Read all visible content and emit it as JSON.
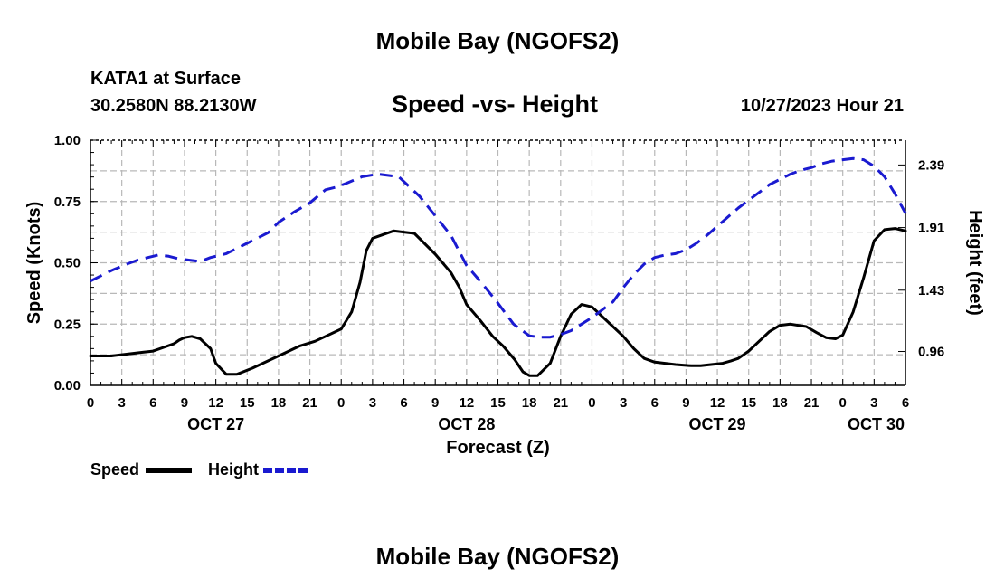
{
  "header": {
    "title": "Mobile Bay (NGOFS2)",
    "station": "KATA1 at Surface",
    "coords": "30.2580N  88.2130W",
    "subtitle": "Speed -vs- Height",
    "datetime": "10/27/2023 Hour 21"
  },
  "footer": {
    "title": "Mobile Bay (NGOFS2)"
  },
  "chart_data": {
    "type": "line",
    "title": "Speed -vs- Height",
    "xlabel": "Forecast (Z)",
    "ylabel": "Speed (Knots)",
    "y2label": "Height (feet)",
    "x_unit": "hours since OCT 27 00Z",
    "xlim": [
      0,
      78
    ],
    "ylim": [
      0,
      1
    ],
    "y2lim": [
      0.7,
      2.58
    ],
    "x_ticks": [
      0,
      3,
      6,
      9,
      12,
      15,
      18,
      21,
      24,
      27,
      30,
      33,
      36,
      39,
      42,
      45,
      48,
      51,
      54,
      57,
      60,
      63,
      66,
      69,
      72,
      75,
      78
    ],
    "x_tick_labels": [
      "0",
      "3",
      "6",
      "9",
      "12",
      "15",
      "18",
      "21",
      "0",
      "3",
      "6",
      "9",
      "12",
      "15",
      "18",
      "21",
      "0",
      "3",
      "6",
      "9",
      "12",
      "15",
      "18",
      "21",
      "0",
      "3",
      "6"
    ],
    "date_labels": [
      {
        "x": 12,
        "label": "OCT 27"
      },
      {
        "x": 36,
        "label": "OCT 28"
      },
      {
        "x": 60,
        "label": "OCT 29"
      },
      {
        "x": 78,
        "label": "OCT 30"
      }
    ],
    "y_ticks": [
      0,
      0.25,
      0.5,
      0.75,
      1.0
    ],
    "y_tick_labels": [
      "0.00",
      "0.25",
      "0.50",
      "0.75",
      "1.00"
    ],
    "y2_ticks": [
      0.96,
      1.43,
      1.91,
      2.39
    ],
    "y2_tick_labels": [
      "0.96",
      "1.43",
      "1.91",
      "2.39"
    ],
    "grid": true,
    "legend": [
      {
        "name": "Speed",
        "color": "#000000",
        "style": "solid"
      },
      {
        "name": "Height",
        "color": "#1a1ad0",
        "style": "dashed"
      }
    ],
    "series": [
      {
        "name": "Speed",
        "axis": "left",
        "color": "#000000",
        "x": [
          0,
          2,
          4,
          5,
          6,
          7,
          8,
          8.5,
          9,
          9.7,
          10.5,
          11.5,
          12,
          13,
          14,
          15.5,
          18,
          20,
          21.5,
          22.5,
          23.5,
          24,
          25,
          25.8,
          26.4,
          27,
          29,
          31,
          33,
          34.5,
          35.3,
          36,
          37.3,
          38.5,
          39.5,
          40.6,
          41.4,
          42,
          42.8,
          44,
          45,
          46,
          47,
          48,
          49,
          50,
          51,
          52,
          53,
          54,
          56,
          57.5,
          58.4,
          59.4,
          60.5,
          61.3,
          62,
          63,
          64,
          65,
          66,
          67,
          68.5,
          69.5,
          70.4,
          71.3,
          72,
          73,
          74,
          75,
          76,
          77,
          78
        ],
        "values": [
          0.12,
          0.12,
          0.13,
          0.135,
          0.14,
          0.155,
          0.17,
          0.185,
          0.195,
          0.2,
          0.19,
          0.15,
          0.09,
          0.045,
          0.045,
          0.07,
          0.12,
          0.16,
          0.18,
          0.2,
          0.22,
          0.23,
          0.3,
          0.42,
          0.55,
          0.6,
          0.63,
          0.62,
          0.535,
          0.46,
          0.4,
          0.33,
          0.265,
          0.2,
          0.16,
          0.105,
          0.055,
          0.04,
          0.04,
          0.09,
          0.2,
          0.29,
          0.33,
          0.32,
          0.28,
          0.24,
          0.2,
          0.15,
          0.11,
          0.095,
          0.085,
          0.08,
          0.08,
          0.085,
          0.09,
          0.1,
          0.11,
          0.14,
          0.18,
          0.22,
          0.245,
          0.25,
          0.24,
          0.215,
          0.195,
          0.19,
          0.205,
          0.3,
          0.44,
          0.59,
          0.635,
          0.64,
          0.63
        ]
      },
      {
        "name": "Height",
        "axis": "right",
        "color": "#1a1ad0",
        "x": [
          0,
          2,
          3.5,
          4.5,
          5.5,
          6.5,
          7.5,
          8.5,
          9.5,
          10.5,
          11.5,
          13,
          15,
          17,
          18,
          19.5,
          21,
          22.5,
          23.5,
          24.5,
          26,
          27.5,
          29.5,
          31.5,
          33,
          34.5,
          36,
          37.5,
          39,
          40.5,
          42,
          43,
          44,
          45,
          46,
          47,
          48,
          49,
          50,
          51,
          52,
          53,
          54,
          55,
          56,
          57,
          58,
          59,
          60,
          61,
          62,
          63,
          64,
          65,
          66,
          67,
          68,
          69,
          70,
          71,
          72,
          73,
          74,
          75,
          76,
          77,
          78
        ],
        "values": [
          1.5,
          1.58,
          1.63,
          1.66,
          1.68,
          1.7,
          1.69,
          1.67,
          1.66,
          1.65,
          1.68,
          1.71,
          1.79,
          1.87,
          1.95,
          2.03,
          2.1,
          2.2,
          2.22,
          2.25,
          2.3,
          2.32,
          2.3,
          2.15,
          2.0,
          1.85,
          1.62,
          1.48,
          1.33,
          1.17,
          1.08,
          1.07,
          1.07,
          1.09,
          1.12,
          1.17,
          1.22,
          1.28,
          1.34,
          1.45,
          1.55,
          1.63,
          1.68,
          1.7,
          1.71,
          1.74,
          1.79,
          1.85,
          1.92,
          1.99,
          2.06,
          2.12,
          2.18,
          2.24,
          2.28,
          2.32,
          2.35,
          2.37,
          2.4,
          2.42,
          2.43,
          2.44,
          2.43,
          2.38,
          2.3,
          2.17,
          2.02
        ]
      }
    ]
  }
}
